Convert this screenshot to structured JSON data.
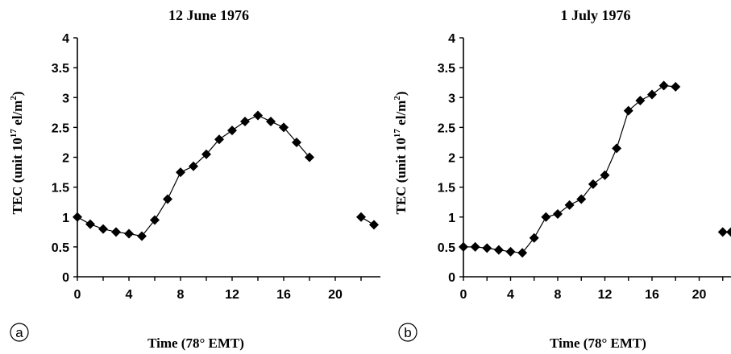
{
  "chart_data": [
    {
      "type": "line",
      "panel_label": "a",
      "title": "12 June 1976",
      "xlabel": "Time (78° EMT)",
      "ylabel_main": "TEC (unit 10",
      "ylabel_sup_exp": "17",
      "ylabel_rest": " el/m",
      "ylabel_sup_unit": "2",
      "ylabel_close": ")",
      "xlim": [
        0,
        23.5
      ],
      "ylim": [
        0,
        4
      ],
      "xticks": [
        "0",
        "4",
        "8",
        "12",
        "16",
        "20"
      ],
      "yticks": [
        "0",
        "0.5",
        "1",
        "1.5",
        "2",
        "2.5",
        "3",
        "3.5",
        "4"
      ],
      "grid": false,
      "segments": [
        [
          [
            0,
            1.0
          ],
          [
            1,
            0.88
          ],
          [
            2,
            0.8
          ],
          [
            3,
            0.75
          ],
          [
            4,
            0.72
          ],
          [
            5,
            0.68
          ],
          [
            6,
            0.95
          ],
          [
            7,
            1.3
          ],
          [
            8,
            1.75
          ],
          [
            9,
            1.85
          ],
          [
            10,
            2.05
          ],
          [
            11,
            2.3
          ],
          [
            12,
            2.45
          ],
          [
            13,
            2.6
          ],
          [
            14,
            2.7
          ],
          [
            15,
            2.6
          ],
          [
            16,
            2.5
          ],
          [
            17,
            2.25
          ],
          [
            18,
            2.0
          ]
        ],
        [
          [
            22,
            1.0
          ],
          [
            23,
            0.87
          ]
        ]
      ]
    },
    {
      "type": "line",
      "panel_label": "b",
      "title": "1 July 1976",
      "xlabel": "Time (78° EMT)",
      "ylabel_main": "TEC (unit 10",
      "ylabel_sup_exp": "17",
      "ylabel_rest": " el/m",
      "ylabel_sup_unit": "2",
      "ylabel_close": ")",
      "xlim": [
        0,
        22.7
      ],
      "ylim": [
        0,
        4
      ],
      "xticks": [
        "0",
        "4",
        "8",
        "12",
        "16",
        "20"
      ],
      "yticks": [
        "0",
        "0.5",
        "1",
        "1.5",
        "2",
        "2.5",
        "3",
        "3.5",
        "4"
      ],
      "grid": false,
      "segments": [
        [
          [
            0,
            0.5
          ],
          [
            1,
            0.5
          ],
          [
            2,
            0.48
          ],
          [
            3,
            0.45
          ],
          [
            4,
            0.42
          ],
          [
            5,
            0.4
          ],
          [
            6,
            0.65
          ],
          [
            7,
            1.0
          ],
          [
            8,
            1.05
          ],
          [
            9,
            1.2
          ],
          [
            10,
            1.3
          ],
          [
            11,
            1.55
          ],
          [
            12,
            1.7
          ],
          [
            13,
            2.15
          ],
          [
            14,
            2.78
          ],
          [
            15,
            2.95
          ],
          [
            16,
            3.05
          ],
          [
            17,
            3.2
          ],
          [
            18,
            3.18
          ]
        ],
        [
          [
            22,
            0.75
          ],
          [
            22.7,
            0.75
          ]
        ]
      ]
    }
  ]
}
